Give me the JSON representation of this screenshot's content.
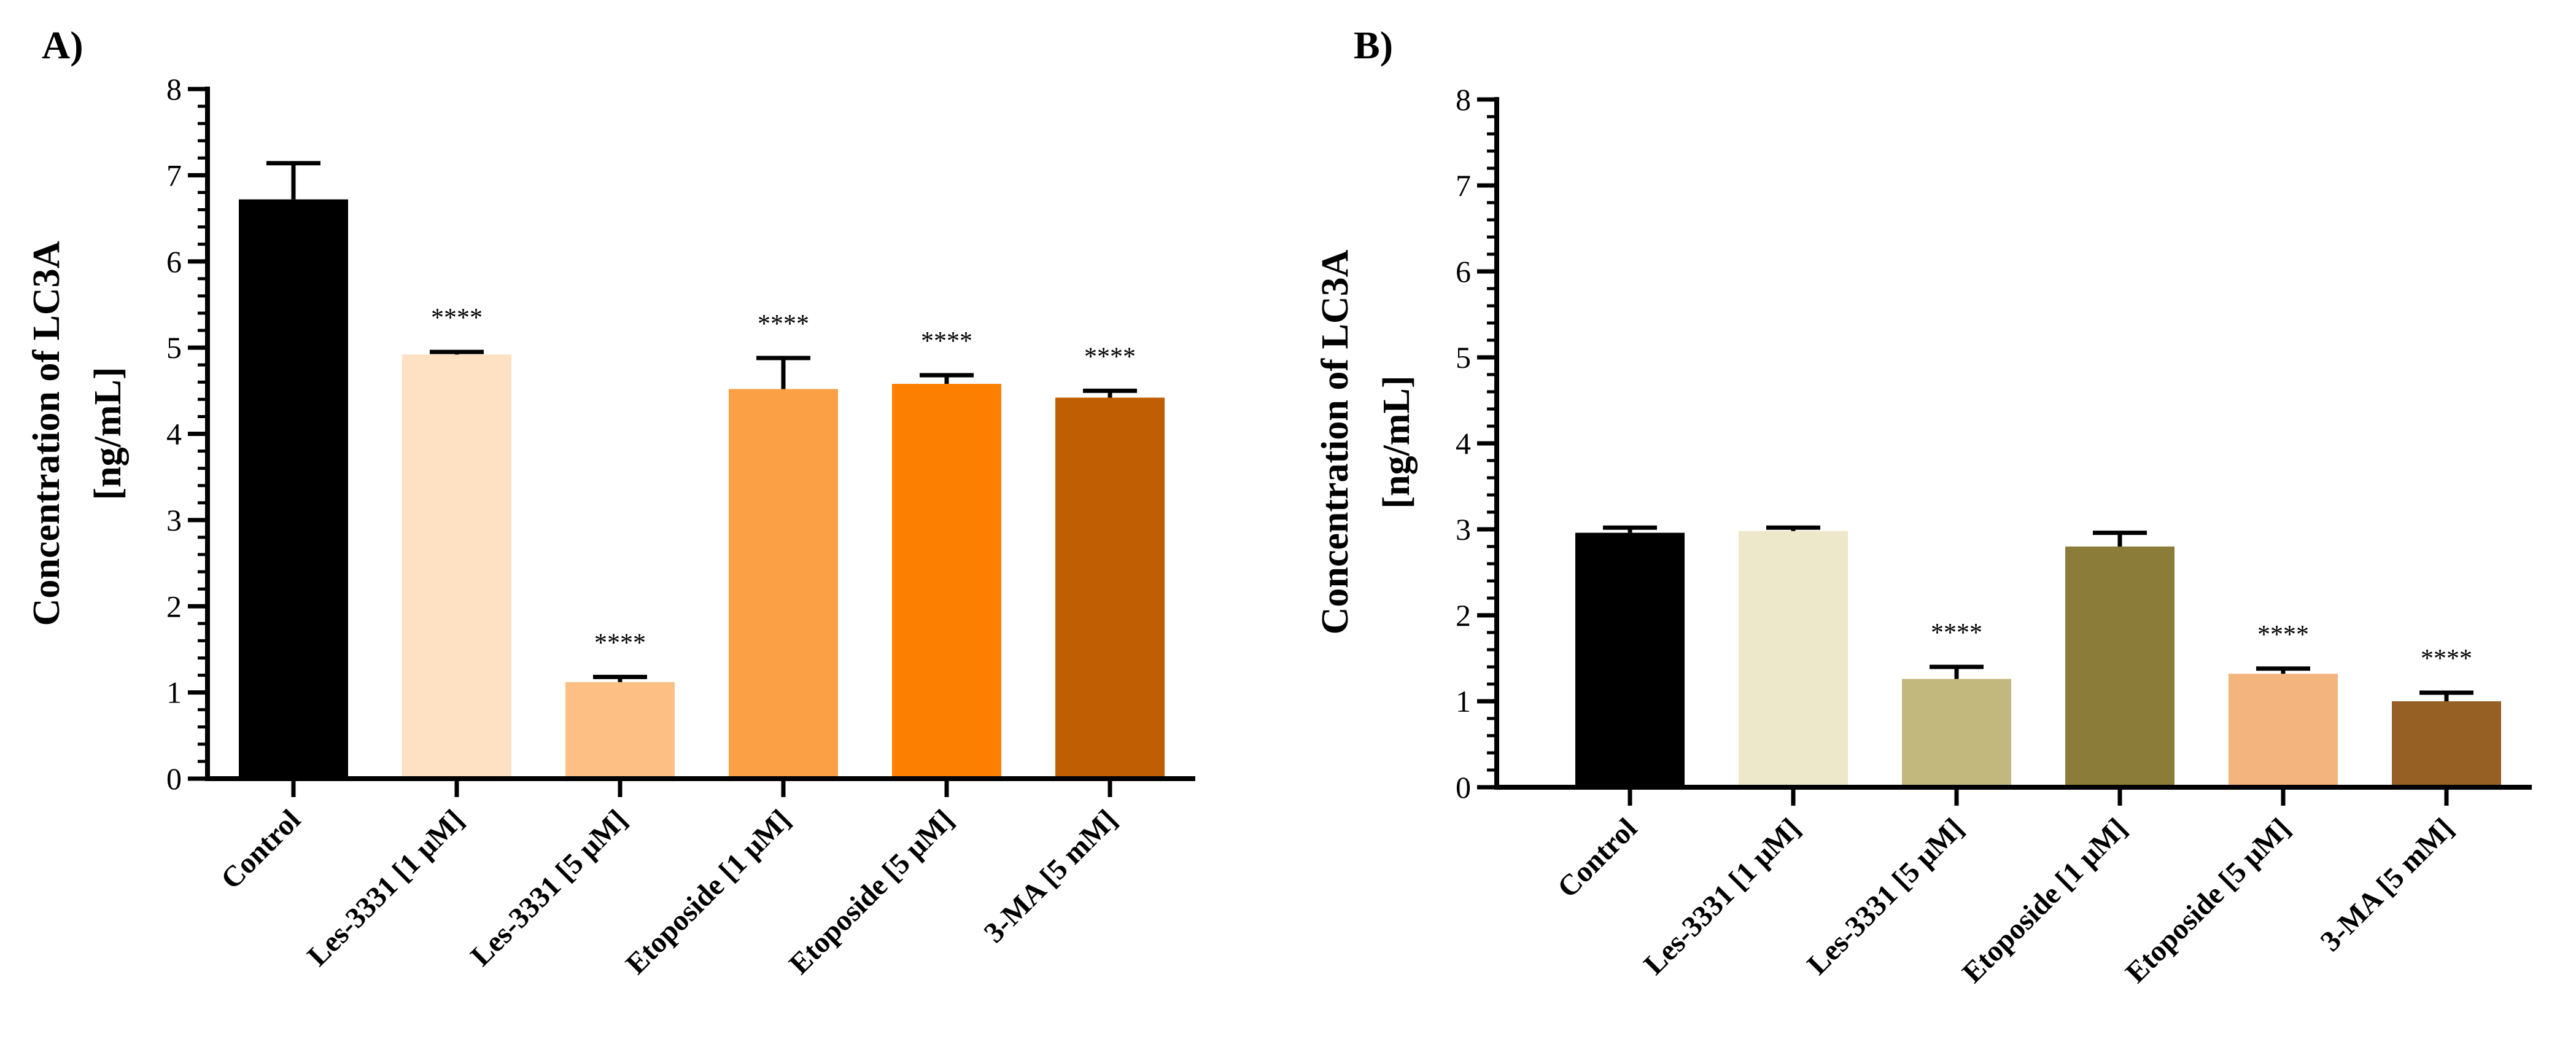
{
  "chart_data": [
    {
      "panel_label": "A)",
      "type": "bar",
      "ylabel_lines": [
        "Concentration of LC3A",
        "[ng/mL]"
      ],
      "ylim": [
        0,
        8
      ],
      "yticks": [
        "0",
        "1",
        "2",
        "3",
        "4",
        "5",
        "6",
        "7",
        "8"
      ],
      "categories": [
        "Control",
        "Les-3331 [1 μM]",
        "Les-3331 [5 μM]",
        "Etoposide [1 μM]",
        "Etoposide [5 μM]",
        "3-MA [5 mM]"
      ],
      "values": [
        6.72,
        4.92,
        1.12,
        4.52,
        4.58,
        4.42
      ],
      "errors": [
        0.42,
        0.03,
        0.06,
        0.36,
        0.1,
        0.08
      ],
      "significance": [
        "",
        "****",
        "****",
        "****",
        "****",
        "****"
      ],
      "colors": [
        "#000000",
        "#fee0c2",
        "#fdbf83",
        "#fca046",
        "#fc7f01",
        "#c05e03"
      ]
    },
    {
      "panel_label": "B)",
      "type": "bar",
      "ylabel_lines": [
        "Concentration of LC3A",
        "[ng/mL]"
      ],
      "ylim": [
        0,
        8
      ],
      "yticks": [
        "0",
        "1",
        "2",
        "3",
        "4",
        "5",
        "6",
        "7",
        "8"
      ],
      "categories": [
        "Control",
        "Les-3331 [1 μM]",
        "Les-3331 [5 μM]",
        "Etoposide [1 μM]",
        "Etoposide [5 μM]",
        "3-MA [5 mM]"
      ],
      "values": [
        2.96,
        2.98,
        1.26,
        2.8,
        1.32,
        1.0
      ],
      "errors": [
        0.06,
        0.04,
        0.14,
        0.16,
        0.06,
        0.1
      ],
      "significance": [
        "",
        "",
        "****",
        "",
        "****",
        "****"
      ],
      "colors": [
        "#000000",
        "#ede8c9",
        "#c2b77d",
        "#8c7c3a",
        "#f3b47e",
        "#965f23"
      ]
    }
  ]
}
